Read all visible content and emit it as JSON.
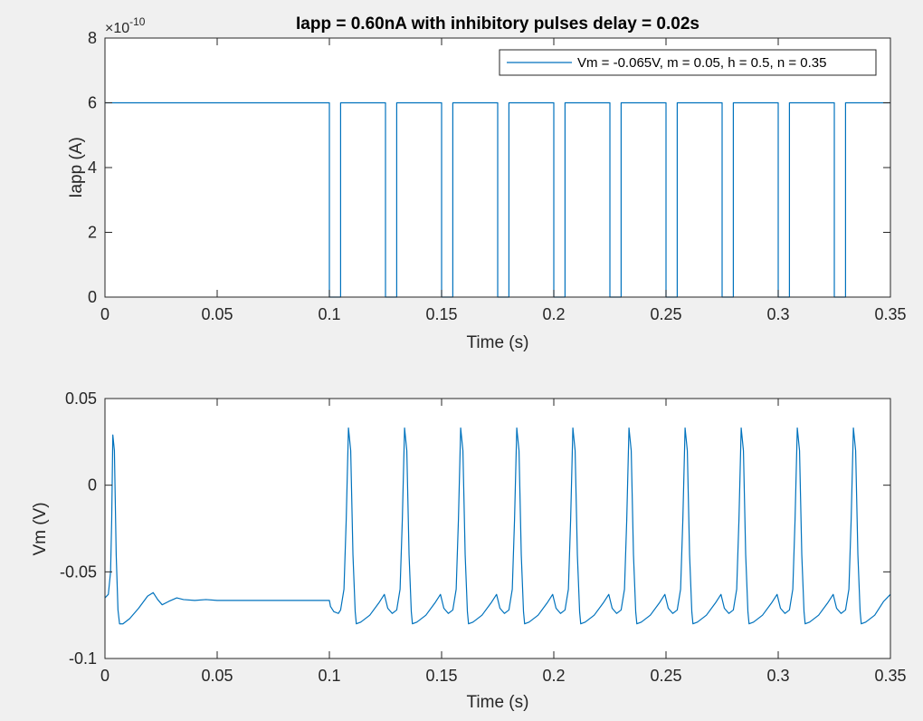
{
  "chart_data": [
    {
      "type": "line",
      "title": "Iapp = 0.60nA with inhibitory pulses delay = 0.02s",
      "xlabel": "Time (s)",
      "ylabel": "Iapp (A)",
      "xlim": [
        0,
        0.35
      ],
      "ylim": [
        0,
        8
      ],
      "xticks": [
        "0",
        "0.05",
        "0.1",
        "0.15",
        "0.2",
        "0.25",
        "0.3",
        "0.35"
      ],
      "yticks": [
        "0",
        "2",
        "4",
        "6",
        "8"
      ],
      "exponent_label": "×10",
      "exponent_power": "-10",
      "grid": false,
      "legend": {
        "position": "top-right",
        "entries": [
          "Vm = -0.065V, m = 0.05, h = 0.5, n = 0.35"
        ]
      },
      "series": [
        {
          "color": "#0072BD",
          "points": [
            [
              0,
              6
            ],
            [
              0.1,
              6
            ],
            [
              0.1,
              0
            ],
            [
              0.105,
              0
            ],
            [
              0.105,
              6
            ],
            [
              0.125,
              6
            ],
            [
              0.125,
              0
            ],
            [
              0.13,
              0
            ],
            [
              0.13,
              6
            ],
            [
              0.15,
              6
            ],
            [
              0.15,
              0
            ],
            [
              0.155,
              0
            ],
            [
              0.155,
              6
            ],
            [
              0.175,
              6
            ],
            [
              0.175,
              0
            ],
            [
              0.18,
              0
            ],
            [
              0.18,
              6
            ],
            [
              0.2,
              6
            ],
            [
              0.2,
              0
            ],
            [
              0.205,
              0
            ],
            [
              0.205,
              6
            ],
            [
              0.225,
              6
            ],
            [
              0.225,
              0
            ],
            [
              0.23,
              0
            ],
            [
              0.23,
              6
            ],
            [
              0.25,
              6
            ],
            [
              0.25,
              0
            ],
            [
              0.255,
              0
            ],
            [
              0.255,
              6
            ],
            [
              0.275,
              6
            ],
            [
              0.275,
              0
            ],
            [
              0.28,
              0
            ],
            [
              0.28,
              6
            ],
            [
              0.3,
              6
            ],
            [
              0.3,
              0
            ],
            [
              0.305,
              0
            ],
            [
              0.305,
              6
            ],
            [
              0.325,
              6
            ],
            [
              0.325,
              0
            ],
            [
              0.33,
              0
            ],
            [
              0.33,
              6
            ],
            [
              0.35,
              6
            ]
          ]
        }
      ]
    },
    {
      "type": "line",
      "title": "",
      "xlabel": "Time (s)",
      "ylabel": "Vm (V)",
      "xlim": [
        0,
        0.35
      ],
      "ylim": [
        -0.1,
        0.05
      ],
      "xticks": [
        "0",
        "0.05",
        "0.1",
        "0.15",
        "0.2",
        "0.25",
        "0.3",
        "0.35"
      ],
      "yticks": [
        "-0.1",
        "-0.05",
        "0",
        "0.05"
      ],
      "grid": false,
      "series": [
        {
          "color": "#0072BD",
          "points": [
            [
              0,
              -0.065
            ],
            [
              0.0015,
              -0.063
            ],
            [
              0.0025,
              -0.05
            ],
            [
              0.003,
              -0.02
            ],
            [
              0.0035,
              0.029
            ],
            [
              0.0042,
              0.02
            ],
            [
              0.005,
              -0.04
            ],
            [
              0.0058,
              -0.072
            ],
            [
              0.0065,
              -0.08
            ],
            [
              0.008,
              -0.08
            ],
            [
              0.011,
              -0.077
            ],
            [
              0.015,
              -0.071
            ],
            [
              0.019,
              -0.064
            ],
            [
              0.0215,
              -0.062
            ],
            [
              0.0235,
              -0.066
            ],
            [
              0.0255,
              -0.069
            ],
            [
              0.0285,
              -0.067
            ],
            [
              0.032,
              -0.065
            ],
            [
              0.035,
              -0.066
            ],
            [
              0.04,
              -0.0665
            ],
            [
              0.045,
              -0.066
            ],
            [
              0.05,
              -0.0665
            ],
            [
              0.06,
              -0.0665
            ],
            [
              0.08,
              -0.0665
            ],
            [
              0.1,
              -0.0665
            ],
            [
              0.1005,
              -0.07
            ],
            [
              0.102,
              -0.073
            ],
            [
              0.104,
              -0.074
            ],
            [
              0.105,
              -0.072
            ],
            [
              0.1065,
              -0.06
            ],
            [
              0.1075,
              -0.02
            ],
            [
              0.1085,
              0.033
            ],
            [
              0.1095,
              0.02
            ],
            [
              0.1105,
              -0.04
            ],
            [
              0.1115,
              -0.073
            ],
            [
              0.112,
              -0.08
            ],
            [
              0.114,
              -0.079
            ],
            [
              0.118,
              -0.075
            ],
            [
              0.122,
              -0.068
            ],
            [
              0.1245,
              -0.063
            ],
            [
              0.126,
              -0.071
            ],
            [
              0.128,
              -0.074
            ],
            [
              0.13,
              -0.072
            ],
            [
              0.1315,
              -0.06
            ],
            [
              0.1325,
              -0.02
            ],
            [
              0.1335,
              0.033
            ],
            [
              0.1345,
              0.02
            ],
            [
              0.1355,
              -0.04
            ],
            [
              0.1365,
              -0.073
            ],
            [
              0.137,
              -0.08
            ],
            [
              0.139,
              -0.079
            ],
            [
              0.143,
              -0.075
            ],
            [
              0.147,
              -0.068
            ],
            [
              0.1495,
              -0.063
            ],
            [
              0.151,
              -0.071
            ],
            [
              0.153,
              -0.074
            ],
            [
              0.155,
              -0.072
            ],
            [
              0.1565,
              -0.06
            ],
            [
              0.1575,
              -0.02
            ],
            [
              0.1585,
              0.033
            ],
            [
              0.1595,
              0.02
            ],
            [
              0.1605,
              -0.04
            ],
            [
              0.1615,
              -0.073
            ],
            [
              0.162,
              -0.08
            ],
            [
              0.164,
              -0.079
            ],
            [
              0.168,
              -0.075
            ],
            [
              0.172,
              -0.068
            ],
            [
              0.1745,
              -0.063
            ],
            [
              0.176,
              -0.071
            ],
            [
              0.178,
              -0.074
            ],
            [
              0.18,
              -0.072
            ],
            [
              0.1815,
              -0.06
            ],
            [
              0.1825,
              -0.02
            ],
            [
              0.1835,
              0.033
            ],
            [
              0.1845,
              0.02
            ],
            [
              0.1855,
              -0.04
            ],
            [
              0.1865,
              -0.073
            ],
            [
              0.187,
              -0.08
            ],
            [
              0.189,
              -0.079
            ],
            [
              0.193,
              -0.075
            ],
            [
              0.197,
              -0.068
            ],
            [
              0.1995,
              -0.063
            ],
            [
              0.201,
              -0.071
            ],
            [
              0.203,
              -0.074
            ],
            [
              0.205,
              -0.072
            ],
            [
              0.2065,
              -0.06
            ],
            [
              0.2075,
              -0.02
            ],
            [
              0.2085,
              0.033
            ],
            [
              0.2095,
              0.02
            ],
            [
              0.2105,
              -0.04
            ],
            [
              0.2115,
              -0.073
            ],
            [
              0.212,
              -0.08
            ],
            [
              0.214,
              -0.079
            ],
            [
              0.218,
              -0.075
            ],
            [
              0.222,
              -0.068
            ],
            [
              0.2245,
              -0.063
            ],
            [
              0.226,
              -0.071
            ],
            [
              0.228,
              -0.074
            ],
            [
              0.23,
              -0.072
            ],
            [
              0.2315,
              -0.06
            ],
            [
              0.2325,
              -0.02
            ],
            [
              0.2335,
              0.033
            ],
            [
              0.2345,
              0.02
            ],
            [
              0.2355,
              -0.04
            ],
            [
              0.2365,
              -0.073
            ],
            [
              0.237,
              -0.08
            ],
            [
              0.239,
              -0.079
            ],
            [
              0.243,
              -0.075
            ],
            [
              0.247,
              -0.068
            ],
            [
              0.2495,
              -0.063
            ],
            [
              0.251,
              -0.071
            ],
            [
              0.253,
              -0.074
            ],
            [
              0.255,
              -0.072
            ],
            [
              0.2565,
              -0.06
            ],
            [
              0.2575,
              -0.02
            ],
            [
              0.2585,
              0.033
            ],
            [
              0.2595,
              0.02
            ],
            [
              0.2605,
              -0.04
            ],
            [
              0.2615,
              -0.073
            ],
            [
              0.262,
              -0.08
            ],
            [
              0.264,
              -0.079
            ],
            [
              0.268,
              -0.075
            ],
            [
              0.272,
              -0.068
            ],
            [
              0.2745,
              -0.063
            ],
            [
              0.276,
              -0.071
            ],
            [
              0.278,
              -0.074
            ],
            [
              0.28,
              -0.072
            ],
            [
              0.2815,
              -0.06
            ],
            [
              0.2825,
              -0.02
            ],
            [
              0.2835,
              0.033
            ],
            [
              0.2845,
              0.02
            ],
            [
              0.2855,
              -0.04
            ],
            [
              0.2865,
              -0.073
            ],
            [
              0.287,
              -0.08
            ],
            [
              0.289,
              -0.079
            ],
            [
              0.293,
              -0.075
            ],
            [
              0.297,
              -0.068
            ],
            [
              0.2995,
              -0.063
            ],
            [
              0.301,
              -0.071
            ],
            [
              0.303,
              -0.074
            ],
            [
              0.305,
              -0.072
            ],
            [
              0.3065,
              -0.06
            ],
            [
              0.3075,
              -0.02
            ],
            [
              0.3085,
              0.033
            ],
            [
              0.3095,
              0.02
            ],
            [
              0.3105,
              -0.04
            ],
            [
              0.3115,
              -0.073
            ],
            [
              0.312,
              -0.08
            ],
            [
              0.314,
              -0.079
            ],
            [
              0.318,
              -0.075
            ],
            [
              0.322,
              -0.068
            ],
            [
              0.3245,
              -0.063
            ],
            [
              0.326,
              -0.071
            ],
            [
              0.328,
              -0.074
            ],
            [
              0.33,
              -0.072
            ],
            [
              0.3315,
              -0.06
            ],
            [
              0.3325,
              -0.02
            ],
            [
              0.3335,
              0.033
            ],
            [
              0.3345,
              0.02
            ],
            [
              0.3355,
              -0.04
            ],
            [
              0.3365,
              -0.073
            ],
            [
              0.337,
              -0.08
            ],
            [
              0.339,
              -0.079
            ],
            [
              0.343,
              -0.075
            ],
            [
              0.347,
              -0.067
            ],
            [
              0.35,
              -0.063
            ]
          ]
        }
      ]
    }
  ]
}
